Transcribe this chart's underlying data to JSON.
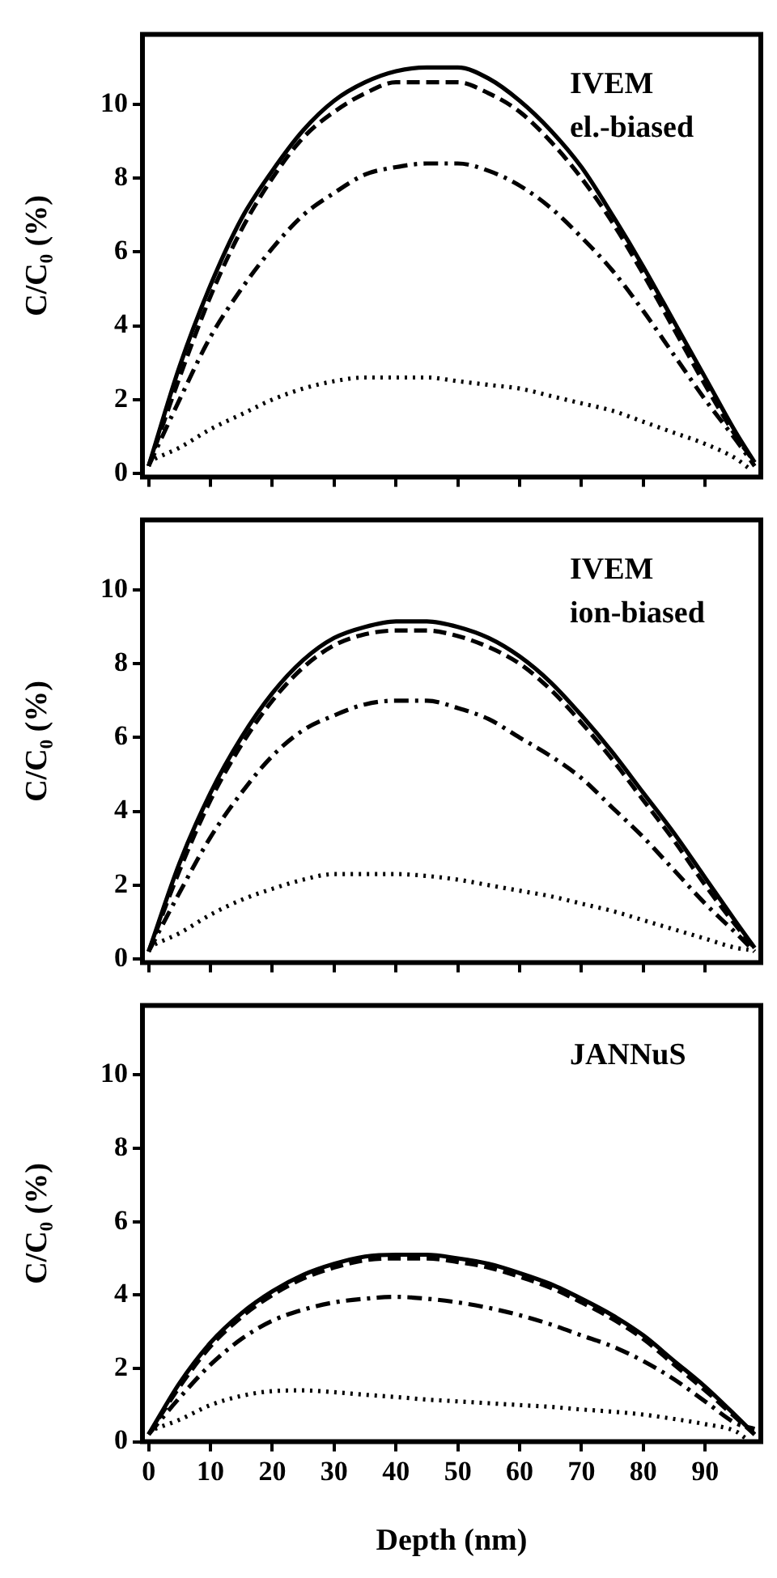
{
  "chart_data": [
    {
      "type": "line",
      "ylabel": "C/C₀ (%)",
      "annotations": [
        "IVEM",
        "el.-biased"
      ],
      "marker": "none",
      "tick_labels": "y",
      "x": [
        0,
        5,
        10,
        15,
        20,
        25,
        30,
        35,
        40,
        45,
        50,
        55,
        60,
        65,
        70,
        75,
        80,
        85,
        90,
        95,
        98
      ],
      "xlim": [
        -1,
        99
      ],
      "xticks": [
        0,
        10,
        20,
        30,
        40,
        50,
        60,
        70,
        80,
        90
      ],
      "ylim": [
        -0.1,
        11.9
      ],
      "yticks": [
        0,
        2,
        4,
        6,
        8,
        10
      ],
      "series": [
        {
          "color": "#000000",
          "line_style": "solid",
          "values": [
            0.2,
            2.9,
            5.1,
            6.9,
            8.2,
            9.3,
            10.1,
            10.6,
            10.9,
            11.0,
            11.0,
            10.7,
            10.1,
            9.3,
            8.3,
            7.0,
            5.6,
            4.1,
            2.6,
            1.1,
            0.3
          ]
        },
        {
          "color": "#000000",
          "line_style": "dashed",
          "values": [
            0.2,
            2.6,
            4.8,
            6.6,
            8.0,
            9.1,
            9.8,
            10.3,
            10.6,
            10.6,
            10.6,
            10.3,
            9.8,
            9.0,
            8.0,
            6.8,
            5.4,
            3.9,
            2.4,
            1.0,
            0.3
          ]
        },
        {
          "color": "#000000",
          "line_style": "dashdot",
          "values": [
            0.2,
            2.0,
            3.7,
            5.0,
            6.1,
            7.0,
            7.6,
            8.1,
            8.3,
            8.4,
            8.4,
            8.2,
            7.8,
            7.2,
            6.4,
            5.5,
            4.4,
            3.2,
            2.0,
            0.9,
            0.2
          ]
        },
        {
          "color": "#000000",
          "line_style": "dotted",
          "x": [
            1,
            5,
            10,
            15,
            20,
            25,
            30,
            35,
            40,
            45,
            50,
            55,
            60,
            65,
            70,
            75,
            80,
            85,
            90,
            95,
            97
          ],
          "values": [
            0.4,
            0.7,
            1.2,
            1.6,
            2.0,
            2.3,
            2.5,
            2.6,
            2.6,
            2.6,
            2.5,
            2.4,
            2.3,
            2.1,
            1.9,
            1.7,
            1.4,
            1.1,
            0.8,
            0.4,
            0.15
          ]
        }
      ]
    },
    {
      "type": "line",
      "ylabel": "C/C₀ (%)",
      "annotations": [
        "IVEM",
        "ion-biased"
      ],
      "marker": "none",
      "tick_labels": "y",
      "x": [
        0,
        5,
        10,
        15,
        20,
        25,
        30,
        35,
        40,
        45,
        50,
        55,
        60,
        65,
        70,
        75,
        80,
        85,
        90,
        95,
        98
      ],
      "xlim": [
        -1,
        99
      ],
      "xticks": [
        0,
        10,
        20,
        30,
        40,
        50,
        60,
        70,
        80,
        90
      ],
      "ylim": [
        -0.1,
        11.9
      ],
      "yticks": [
        0,
        2,
        4,
        6,
        8,
        10
      ],
      "series": [
        {
          "color": "#000000",
          "line_style": "solid",
          "values": [
            0.2,
            2.6,
            4.5,
            6.0,
            7.2,
            8.1,
            8.7,
            9.0,
            9.15,
            9.15,
            9.0,
            8.7,
            8.2,
            7.5,
            6.6,
            5.6,
            4.5,
            3.4,
            2.2,
            1.0,
            0.3
          ]
        },
        {
          "color": "#000000",
          "line_style": "dashed",
          "values": [
            0.2,
            2.4,
            4.3,
            5.8,
            7.0,
            7.9,
            8.5,
            8.8,
            8.9,
            8.9,
            8.75,
            8.45,
            8.0,
            7.3,
            6.4,
            5.4,
            4.3,
            3.2,
            2.0,
            0.9,
            0.3
          ]
        },
        {
          "color": "#000000",
          "line_style": "dashdot",
          "values": [
            0.2,
            1.8,
            3.3,
            4.5,
            5.5,
            6.2,
            6.6,
            6.9,
            7.0,
            7.0,
            6.8,
            6.5,
            6.0,
            5.5,
            4.9,
            4.1,
            3.3,
            2.4,
            1.5,
            0.7,
            0.2
          ]
        },
        {
          "color": "#000000",
          "line_style": "dotted",
          "x": [
            1,
            5,
            10,
            15,
            20,
            25,
            30,
            35,
            40,
            45,
            50,
            55,
            60,
            65,
            70,
            75,
            80,
            85,
            90,
            95,
            97
          ],
          "values": [
            0.4,
            0.7,
            1.2,
            1.6,
            1.9,
            2.15,
            2.3,
            2.3,
            2.3,
            2.25,
            2.15,
            2.0,
            1.85,
            1.7,
            1.5,
            1.3,
            1.05,
            0.8,
            0.55,
            0.3,
            0.25
          ]
        }
      ]
    },
    {
      "type": "line",
      "ylabel": "C/C₀ (%)",
      "xlabel": "Depth (nm)",
      "annotations": [
        "JANNuS"
      ],
      "marker": "none",
      "x": [
        0,
        5,
        10,
        15,
        20,
        25,
        30,
        35,
        40,
        45,
        50,
        55,
        60,
        65,
        70,
        75,
        80,
        85,
        90,
        95,
        98
      ],
      "xlim": [
        -1,
        99
      ],
      "xticks": [
        0,
        10,
        20,
        30,
        40,
        50,
        60,
        70,
        80,
        90
      ],
      "ylim": [
        0,
        11.9
      ],
      "yticks": [
        0,
        2,
        4,
        6,
        8,
        10
      ],
      "series": [
        {
          "color": "#000000",
          "line_style": "solid",
          "values": [
            0.2,
            1.6,
            2.7,
            3.5,
            4.1,
            4.55,
            4.85,
            5.05,
            5.1,
            5.1,
            5.0,
            4.85,
            4.6,
            4.3,
            3.9,
            3.45,
            2.9,
            2.2,
            1.5,
            0.7,
            0.2
          ]
        },
        {
          "color": "#000000",
          "line_style": "dashed",
          "values": [
            0.2,
            1.5,
            2.6,
            3.4,
            4.0,
            4.45,
            4.75,
            4.95,
            5.0,
            5.0,
            4.9,
            4.75,
            4.5,
            4.2,
            3.8,
            3.35,
            2.8,
            2.1,
            1.4,
            0.65,
            0.2
          ]
        },
        {
          "color": "#000000",
          "line_style": "dashdot",
          "values": [
            0.2,
            1.2,
            2.1,
            2.8,
            3.3,
            3.6,
            3.8,
            3.9,
            3.95,
            3.9,
            3.8,
            3.65,
            3.45,
            3.2,
            2.9,
            2.6,
            2.2,
            1.7,
            1.1,
            0.5,
            0.35
          ]
        },
        {
          "color": "#000000",
          "line_style": "dotted",
          "x": [
            1,
            5,
            10,
            15,
            20,
            25,
            30,
            35,
            40,
            45,
            50,
            55,
            60,
            65,
            70,
            75,
            80,
            85,
            90,
            95,
            96.5
          ],
          "values": [
            0.35,
            0.6,
            1.0,
            1.25,
            1.38,
            1.4,
            1.35,
            1.28,
            1.22,
            1.15,
            1.1,
            1.05,
            1.0,
            0.95,
            0.88,
            0.82,
            0.74,
            0.62,
            0.48,
            0.28,
            0.1
          ]
        }
      ]
    }
  ]
}
